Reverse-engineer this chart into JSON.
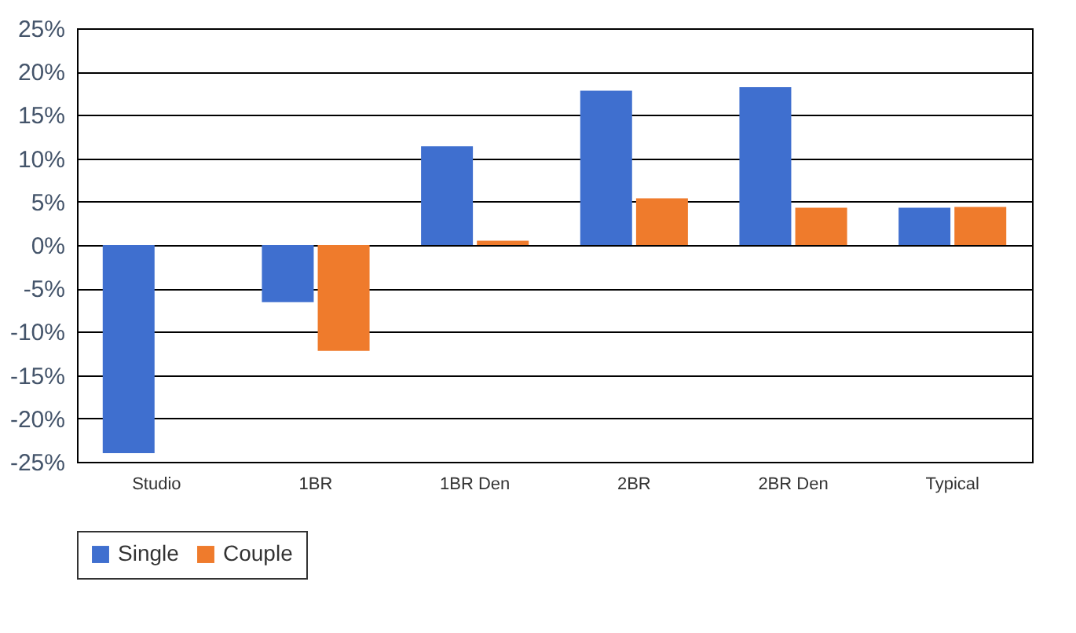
{
  "chart_data": {
    "type": "bar",
    "categories": [
      "Studio",
      "1BR",
      "1BR Den",
      "2BR",
      "2BR Den",
      "Typical"
    ],
    "series": [
      {
        "name": "Single",
        "color": "#3f6fcf",
        "values": [
          -24.0,
          -6.6,
          11.4,
          17.8,
          18.2,
          4.3
        ]
      },
      {
        "name": "Couple",
        "color": "#ef7b2c",
        "values": [
          null,
          -12.2,
          0.5,
          5.4,
          4.3,
          4.4
        ]
      }
    ],
    "ylim": [
      -25,
      25
    ],
    "yticks": [
      {
        "value": -25,
        "label": "-25%"
      },
      {
        "value": -20,
        "label": "-20%"
      },
      {
        "value": -15,
        "label": "-15%"
      },
      {
        "value": -10,
        "label": "-10%"
      },
      {
        "value": -5,
        "label": "-5%"
      },
      {
        "value": 0,
        "label": "0%"
      },
      {
        "value": 5,
        "label": "5%"
      },
      {
        "value": 10,
        "label": "10%"
      },
      {
        "value": 15,
        "label": "15%"
      },
      {
        "value": 20,
        "label": "20%"
      },
      {
        "value": 25,
        "label": "25%"
      }
    ],
    "grid": "y",
    "legend": "bottom"
  }
}
